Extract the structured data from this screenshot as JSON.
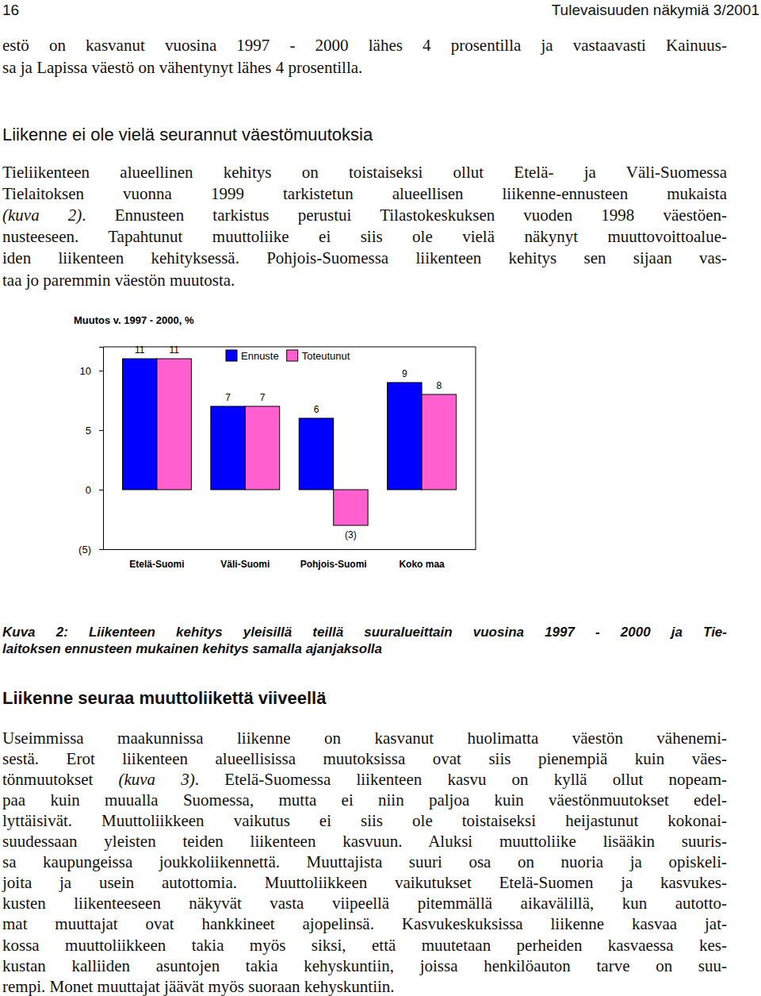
{
  "header": {
    "page": "16",
    "publication": "Tulevaisuuden näkymiä 3/2001"
  },
  "body": [
    {
      "type": "paragraph",
      "lines": [
        "estö on kasvanut vuosina 1997 - 2000 lähes 4 prosentilla ja vastaavasti Kainuus-",
        "sa ja Lapissa väestö on vähentynyt lähes 4 prosentilla."
      ]
    },
    {
      "type": "heading",
      "text": "Liikenne ei ole vielä seurannut väestömuutoksia"
    },
    {
      "type": "paragraph",
      "lines": [
        "Tieliikenteen alueellinen kehitys on toistaiseksi ollut Etelä- ja Väli-Suomessa",
        "Tielaitoksen vuonna 1999 tarkistetun alueellisen liikenne-ennusteen mukaista",
        [
          {
            "text": "(kuva 2)",
            "italic": true
          },
          {
            "text": ". Ennusteen tarkistus perustui Tilastokeskuksen vuoden 1998 väestöen-"
          }
        ],
        "nusteeseen. Tapahtunut muuttoliike ei siis ole vielä näkynyt muuttovoittoalue-",
        "iden liikenteen kehityksessä. Pohjois-Suomessa liikenteen kehitys sen sijaan vas-",
        "taa jo paremmin väestön muutosta."
      ]
    },
    {
      "type": "caption",
      "lines": [
        "Kuva 2: Liikenteen kehitys yleisillä teillä suuralueittain vuosina 1997 - 2000 ja Tie-",
        "laitoksen ennusteen mukainen kehitys samalla ajanjaksolla"
      ]
    },
    {
      "type": "subheading",
      "text": "Liikenne seuraa muuttoliikettä viiveellä"
    },
    {
      "type": "paragraph",
      "lines": [
        "Useimmissa maakunnissa liikenne on kasvanut huolimatta väestön vähenemi-",
        "sestä. Erot liikenteen alueellisissa muutoksissa ovat siis pienempiä kuin väes-",
        [
          {
            "text": "tönmuutokset "
          },
          {
            "text": "(kuva 3)",
            "italic": true
          },
          {
            "text": ". Etelä-Suomessa liikenteen kasvu on kyllä ollut nopeam-"
          }
        ],
        "paa kuin muualla Suomessa, mutta ei niin paljoa kuin väestönmuutokset edel-",
        "lyttäisivät. Muuttoliikkeen vaikutus ei siis ole toistaiseksi heijastunut kokonai-",
        "suudessaan yleisten teiden liikenteen kasvuun. Aluksi muuttoliike lisääkin suuris-",
        "sa kaupungeissa joukkoliikennettä. Muuttajista suuri osa on nuoria ja opiskeli-",
        "joita ja usein autottomia. Muuttoliikkeen vaikutukset Etelä-Suomen ja kasvukes-",
        "kusten liikenteeseen näkyvät vasta viipeellä pitemmällä aikavälillä, kun autotto-",
        "mat muuttajat ovat hankkineet ajopelinsä. Kasvukeskuksissa liikenne kasvaa jat-",
        "kossa muuttoliikkeen takia myös siksi, että muutetaan perheiden kasvaessa kes-",
        "kustan kalliiden asuntojen takia kehyskuntiin, joissa henkilöauton tarve on suu-",
        "rempi. Monet muuttajat jäävät myös suoraan kehyskuntiin."
      ]
    }
  ],
  "chart_data": {
    "type": "bar",
    "title": "Muutos v. 1997 - 2000, %",
    "categories": [
      "Etelä-Suomi",
      "Väli-Suomi",
      "Pohjois-Suomi",
      "Koko maa"
    ],
    "series": [
      {
        "name": "Ennuste",
        "color": "#0000ff",
        "values": [
          11,
          7,
          6,
          9
        ]
      },
      {
        "name": "Toteutunut",
        "color": "#ff5fcf",
        "values": [
          11,
          7,
          -3,
          8
        ],
        "value_labels": [
          "11",
          "7",
          "(3)",
          "8"
        ]
      }
    ],
    "ylim": [
      -5,
      12
    ],
    "yticks": [
      {
        "value": -5,
        "label": "(5)"
      },
      0,
      5,
      10
    ],
    "grid": false,
    "legend": "top",
    "data_labels": true
  }
}
